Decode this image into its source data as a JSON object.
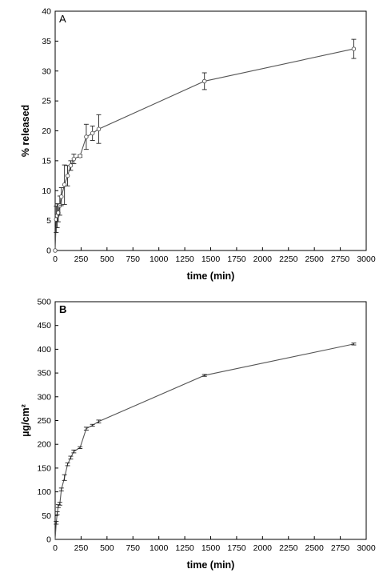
{
  "chart_data": [
    {
      "type": "line",
      "panel_label": "A",
      "xlabel": "time (min)",
      "ylabel": "% released",
      "xlim": [
        0,
        3000
      ],
      "ylim": [
        0,
        40
      ],
      "xticks": [
        0,
        250,
        500,
        750,
        1000,
        1250,
        1500,
        1750,
        2000,
        2250,
        2500,
        2750,
        3000
      ],
      "yticks": [
        0,
        5,
        10,
        15,
        20,
        25,
        30,
        35,
        40
      ],
      "marker": "open-circle",
      "color": "#555555",
      "series": [
        {
          "x": [
            0,
            10,
            20,
            30,
            45,
            60,
            90,
            120,
            150,
            180,
            240,
            300,
            360,
            420,
            1440,
            2880
          ],
          "y": [
            0,
            5.2,
            5.8,
            6.3,
            7.5,
            9.0,
            11.0,
            12.5,
            14.2,
            15.3,
            15.8,
            19.0,
            19.6,
            20.3,
            28.3,
            33.7
          ],
          "err": [
            0,
            2.2,
            2.0,
            1.5,
            1.6,
            1.5,
            3.3,
            1.7,
            0.8,
            0.8,
            0.2,
            2.1,
            1.2,
            2.4,
            1.4,
            1.6
          ]
        }
      ]
    },
    {
      "type": "line",
      "panel_label": "B",
      "xlabel": "time (min)",
      "ylabel": "µg/cm²",
      "xlim": [
        0,
        3000
      ],
      "ylim": [
        0,
        500
      ],
      "xticks": [
        0,
        250,
        500,
        750,
        1000,
        1250,
        1500,
        1750,
        2000,
        2250,
        2500,
        2750,
        3000
      ],
      "yticks": [
        0,
        50,
        100,
        150,
        200,
        250,
        300,
        350,
        400,
        450,
        500
      ],
      "marker": "none",
      "color": "#555555",
      "series": [
        {
          "x": [
            0,
            10,
            20,
            30,
            45,
            60,
            90,
            120,
            150,
            180,
            240,
            300,
            360,
            420,
            1440,
            2880
          ],
          "y": [
            0,
            35,
            55,
            70,
            75,
            105,
            130,
            158,
            172,
            185,
            193,
            233,
            240,
            248,
            345,
            411
          ],
          "err": [
            0,
            3,
            3,
            3,
            3,
            3,
            6,
            3,
            3,
            3,
            2,
            3,
            2,
            3,
            2,
            2
          ]
        }
      ]
    }
  ]
}
